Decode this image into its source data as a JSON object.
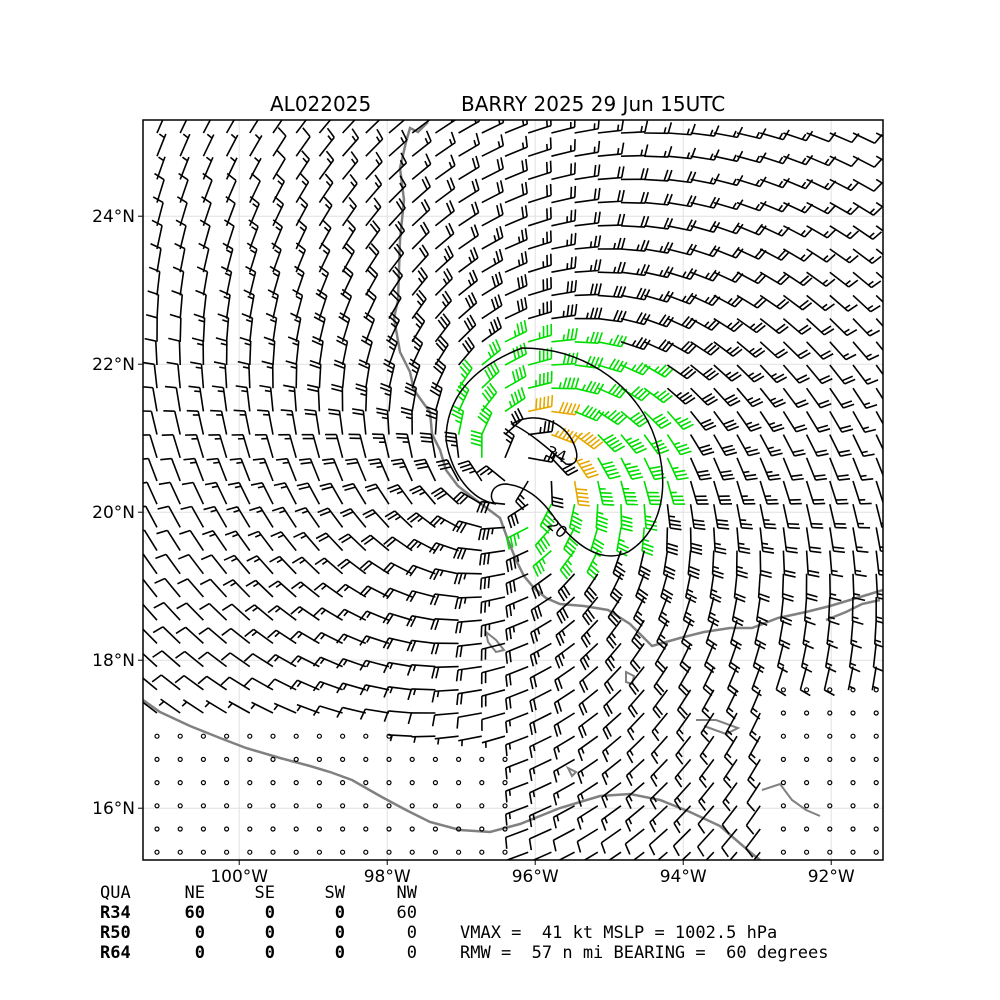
{
  "title": {
    "storm_id": "AL022025",
    "storm_info": "BARRY 2025 29 Jun 15UTC"
  },
  "axes": {
    "lon_min": -101.3,
    "lon_max": -91.3,
    "lat_min": 15.3,
    "lat_max": 25.3,
    "x_ticks": [
      {
        "value": -100,
        "label": "100°W"
      },
      {
        "value": -98,
        "label": "98°W"
      },
      {
        "value": -96,
        "label": "96°W"
      },
      {
        "value": -94,
        "label": "94°W"
      },
      {
        "value": -92,
        "label": "92°W"
      }
    ],
    "y_ticks": [
      {
        "value": 24,
        "label": "24°N"
      },
      {
        "value": 22,
        "label": "22°N"
      },
      {
        "value": 20,
        "label": "20°N"
      },
      {
        "value": 18,
        "label": "18°N"
      },
      {
        "value": 16,
        "label": "16°N"
      }
    ],
    "grid": true
  },
  "storm": {
    "center_lon": -96.2,
    "center_lat": 20.55,
    "vmax_kt": 41
  },
  "wind_colors": {
    "calm": "#000000",
    "below_34": "#000000",
    "r34": "#00dd00",
    "r50": "#e6a700"
  },
  "coast_color": "#808080",
  "contours": [
    {
      "label": "34",
      "label_lon": -95.75,
      "label_lat": 20.8
    },
    {
      "label": "20",
      "label_lon": -95.7,
      "label_lat": 19.8
    }
  ],
  "radii_table": {
    "header": [
      "QUA",
      "NE",
      "SE",
      "SW",
      "NW"
    ],
    "rows": [
      [
        "R34",
        "60",
        "0",
        "0",
        "60"
      ],
      [
        "R50",
        "0",
        "0",
        "0",
        "0"
      ],
      [
        "R64",
        "0",
        "0",
        "0",
        "0"
      ]
    ]
  },
  "info": {
    "line1": "VMAX =  41 kt MSLP = 1002.5 hPa",
    "line2": "RMW =  57 n mi BEARING =  60 degrees"
  }
}
